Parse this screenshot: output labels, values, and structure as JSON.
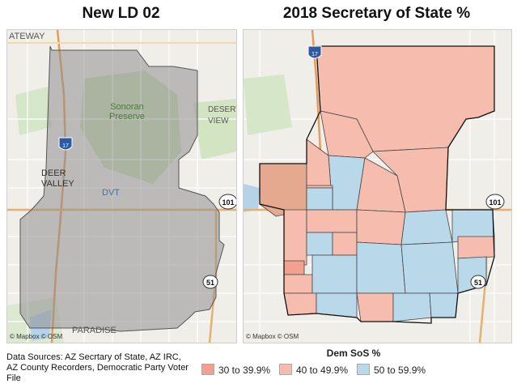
{
  "titles": {
    "left": "New LD 02",
    "right": "2018 Secretary of State %"
  },
  "map_left": {
    "labels": {
      "gateway": "ATEWAY",
      "sonoran": "Sonoran",
      "preserve": "Preserve",
      "desert": "DESERT",
      "view": "VIEW",
      "deer": "DEER",
      "valley": "VALLEY",
      "dvt": "DVT",
      "paradise": "PARADISE",
      "hwy17": "17",
      "hwy101": "101",
      "hwy51": "51"
    },
    "attribution": "© Mapbox © OSM",
    "colors": {
      "district_fill": "#8f8f8f",
      "district_outline": "#555555"
    }
  },
  "map_right": {
    "attribution": "© Mapbox © OSM",
    "labels": {
      "hwy17": "17",
      "hwy101": "101",
      "hwy51": "51"
    }
  },
  "legend": {
    "title": "Dem SoS %",
    "items": [
      {
        "label": "30 to 39.9%",
        "color": "#f2a08f"
      },
      {
        "label": "40 to 49.9%",
        "color": "#f6bcae"
      },
      {
        "label": "50 to 59.9%",
        "color": "#b9d9ea"
      }
    ]
  },
  "sources": "Data Sources: AZ Secrtary of State, AZ IRC, AZ County Recorders, Democratic Party Voter File"
}
